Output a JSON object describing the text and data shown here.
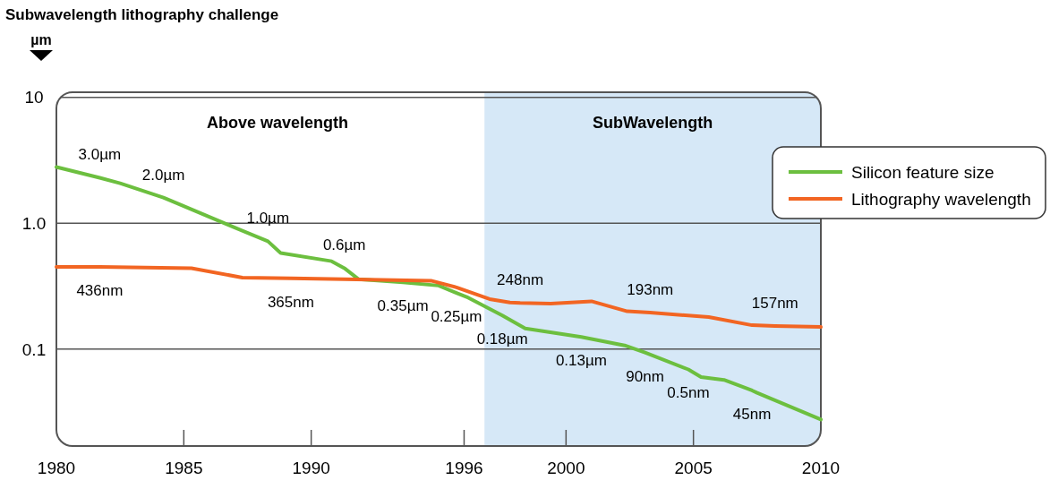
{
  "chart_data": {
    "type": "line",
    "title": "Subwavelength lithography challenge",
    "ylabel": "µm",
    "xlim": [
      1980,
      2010
    ],
    "xticks": [
      1980,
      1985,
      1990,
      1996,
      2000,
      2005,
      2010
    ],
    "ylim": [
      0.017,
      11
    ],
    "yticks": [
      10,
      {
        "value": 1,
        "label": "1.0"
      },
      0.1
    ],
    "log": "y",
    "grid": "y",
    "legend": "right",
    "line_style": "solid",
    "marker": "none",
    "series": [
      {
        "name": "Silicon feature size",
        "color": "#6cbf3f",
        "x": [
          1980,
          1981.7,
          1982.5,
          1984.2,
          1984.6,
          1986.75,
          1988.3,
          1988.8,
          1990.8,
          1991.3,
          1991.85,
          1993.6,
          1995,
          1995.7,
          1996.1,
          1997.5,
          1998.4,
          2000.6,
          2002.3,
          2003.1,
          2004.8,
          2005.3,
          2006.2,
          2007.3,
          2007.5,
          2010
        ],
        "values": [
          2.8,
          2.3,
          2.08,
          1.6,
          1.48,
          0.97,
          0.72,
          0.58,
          0.5,
          0.44,
          0.36,
          0.34,
          0.32,
          0.28,
          0.26,
          0.185,
          0.146,
          0.125,
          0.107,
          0.094,
          0.069,
          0.06,
          0.057,
          0.047,
          0.045,
          0.0276
        ]
      },
      {
        "name": "Lithography wavelength",
        "color": "#f26522",
        "x": [
          1980,
          1981.7,
          1985.3,
          1987.3,
          1989.2,
          1991.3,
          1994.7,
          1995.7,
          1997,
          1997.8,
          1998.2,
          1999.4,
          2001,
          2002.4,
          2003.3,
          2005.6,
          2007.3,
          2008.2,
          2010
        ],
        "values": [
          0.45,
          0.45,
          0.44,
          0.37,
          0.365,
          0.36,
          0.35,
          0.31,
          0.25,
          0.235,
          0.233,
          0.23,
          0.24,
          0.2,
          0.195,
          0.18,
          0.155,
          0.153,
          0.15
        ]
      }
    ],
    "bands": [
      {
        "axis": "x",
        "from": 1996.8,
        "to": 2010,
        "label": "SubWavelength",
        "color": "#d6e8f7"
      }
    ],
    "annotations": [
      "Above wavelength",
      {
        "text": "3.0µm",
        "x": 1981.7,
        "y": 2.3
      },
      {
        "text": "2.0µm",
        "x": 1984.2,
        "y": 1.6
      },
      {
        "text": "1.0µm",
        "x": 1988.3,
        "y": 0.72
      },
      {
        "text": "0.6µm",
        "x": 1991.3,
        "y": 0.44
      },
      {
        "text": "436nm",
        "x": 1981.7,
        "y": 0.45
      },
      {
        "text": "365nm",
        "x": 1989.2,
        "y": 0.365
      },
      {
        "text": "0.35µm",
        "x": 1993.6,
        "y": 0.34
      },
      {
        "text": "0.25µm",
        "x": 1995.7,
        "y": 0.28
      },
      {
        "text": "0.18µm",
        "x": 1997.5,
        "y": 0.185
      },
      {
        "text": "0.13µm",
        "x": 2000.6,
        "y": 0.125
      },
      {
        "text": "90nm",
        "x": 2003.1,
        "y": 0.094
      },
      {
        "text": "0.5nm",
        "x": 2004.8,
        "y": 0.069
      },
      {
        "text": "45nm",
        "x": 2007.3,
        "y": 0.047
      },
      {
        "text": "248nm",
        "x": 1998.2,
        "y": 0.233
      },
      {
        "text": "193nm",
        "x": 2003.3,
        "y": 0.195
      },
      {
        "text": "157nm",
        "x": 2008.2,
        "y": 0.153
      }
    ]
  }
}
